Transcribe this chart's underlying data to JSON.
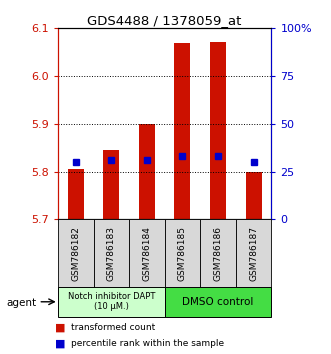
{
  "title": "GDS4488 / 1378059_at",
  "samples": [
    "GSM786182",
    "GSM786183",
    "GSM786184",
    "GSM786185",
    "GSM786186",
    "GSM786187"
  ],
  "bar_tops": [
    5.805,
    5.845,
    5.9,
    6.07,
    6.072,
    5.8
  ],
  "bar_bottom": 5.7,
  "percentile_values": [
    5.82,
    5.825,
    5.825,
    5.832,
    5.832,
    5.82
  ],
  "ylim": [
    5.7,
    6.1
  ],
  "yticks_left": [
    5.7,
    5.8,
    5.9,
    6.0,
    6.1
  ],
  "yticks_right": [
    0,
    25,
    50,
    75,
    100
  ],
  "yticks_right_values": [
    5.7,
    5.8,
    5.9,
    6.0,
    6.1
  ],
  "bar_color": "#cc1100",
  "percentile_color": "#0000cc",
  "group1_label": "Notch inhibitor DAPT\n(10 μM.)",
  "group2_label": "DMSO control",
  "group1_color": "#ccffcc",
  "group2_color": "#44dd44",
  "agent_label": "agent",
  "legend_red": "transformed count",
  "legend_blue": "percentile rank within the sample",
  "sample_box_color": "#d8d8d8",
  "fig_width": 3.31,
  "fig_height": 3.54
}
